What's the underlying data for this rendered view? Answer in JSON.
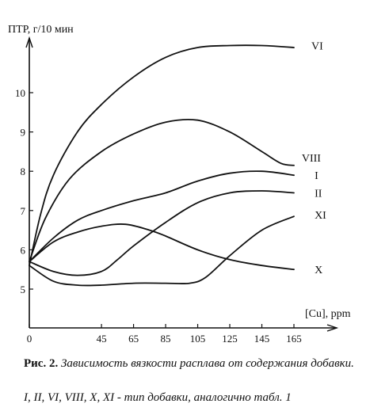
{
  "chart_data": {
    "type": "line",
    "ylabel": "ПТР, г/10 мин",
    "xlabel": "[Cu], ppm",
    "xlim": [
      0,
      175
    ],
    "ylim": [
      4.3,
      11.4
    ],
    "x_ticks": [
      0,
      45,
      65,
      85,
      105,
      125,
      145,
      165
    ],
    "y_ticks": [
      5,
      6,
      7,
      8,
      9,
      10
    ],
    "grid": false,
    "series": [
      {
        "name": "VI",
        "points": [
          [
            0,
            5.6
          ],
          [
            7,
            6.9
          ],
          [
            15,
            7.9
          ],
          [
            30,
            9.0
          ],
          [
            45,
            9.7
          ],
          [
            65,
            10.4
          ],
          [
            85,
            10.9
          ],
          [
            105,
            11.15
          ],
          [
            125,
            11.2
          ],
          [
            145,
            11.2
          ],
          [
            165,
            11.15
          ]
        ]
      },
      {
        "name": "VIII",
        "points": [
          [
            0,
            5.7
          ],
          [
            10,
            6.8
          ],
          [
            25,
            7.8
          ],
          [
            45,
            8.5
          ],
          [
            65,
            8.95
          ],
          [
            85,
            9.25
          ],
          [
            105,
            9.3
          ],
          [
            125,
            9.0
          ],
          [
            145,
            8.5
          ],
          [
            157,
            8.2
          ],
          [
            165,
            8.15
          ]
        ]
      },
      {
        "name": "I",
        "points": [
          [
            0,
            5.7
          ],
          [
            15,
            6.3
          ],
          [
            30,
            6.75
          ],
          [
            45,
            7.0
          ],
          [
            65,
            7.25
          ],
          [
            85,
            7.45
          ],
          [
            105,
            7.75
          ],
          [
            125,
            7.95
          ],
          [
            145,
            8.0
          ],
          [
            165,
            7.9
          ]
        ]
      },
      {
        "name": "II",
        "points": [
          [
            0,
            5.7
          ],
          [
            15,
            5.45
          ],
          [
            30,
            5.35
          ],
          [
            45,
            5.45
          ],
          [
            55,
            5.75
          ],
          [
            65,
            6.1
          ],
          [
            85,
            6.7
          ],
          [
            105,
            7.2
          ],
          [
            125,
            7.45
          ],
          [
            145,
            7.5
          ],
          [
            165,
            7.45
          ]
        ]
      },
      {
        "name": "XI",
        "points": [
          [
            0,
            5.6
          ],
          [
            15,
            5.2
          ],
          [
            30,
            5.1
          ],
          [
            45,
            5.1
          ],
          [
            65,
            5.15
          ],
          [
            85,
            5.15
          ],
          [
            100,
            5.15
          ],
          [
            110,
            5.3
          ],
          [
            125,
            5.85
          ],
          [
            145,
            6.5
          ],
          [
            165,
            6.85
          ]
        ]
      },
      {
        "name": "X",
        "points": [
          [
            0,
            5.7
          ],
          [
            15,
            6.2
          ],
          [
            30,
            6.45
          ],
          [
            45,
            6.6
          ],
          [
            60,
            6.65
          ],
          [
            75,
            6.5
          ],
          [
            85,
            6.35
          ],
          [
            105,
            6.0
          ],
          [
            125,
            5.75
          ],
          [
            145,
            5.6
          ],
          [
            165,
            5.5
          ]
        ]
      }
    ],
    "label_positions_data": {
      "VI": [
        166,
        11.2
      ],
      "VIII": [
        160,
        8.35
      ],
      "I": [
        168,
        7.9
      ],
      "II": [
        168,
        7.45
      ],
      "XI": [
        168,
        6.9
      ],
      "X": [
        168,
        5.5
      ]
    }
  },
  "caption": {
    "fig_label": "Рис. 2.",
    "text": "Зависимость вязкости расплава от содержания добавки.",
    "note": "I, II, VI, VIII, X, XI - тип добавки, аналогично табл. 1"
  }
}
